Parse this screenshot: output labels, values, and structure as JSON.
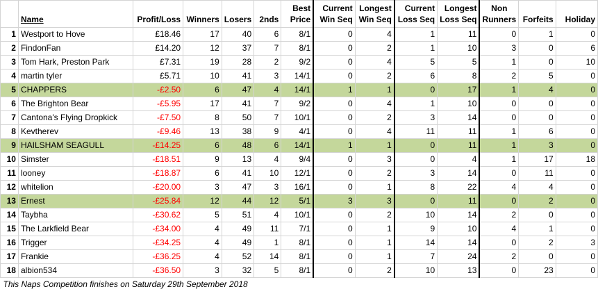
{
  "headers": {
    "name": "Name",
    "profit": "Profit/Loss",
    "winners": "Winners",
    "losers": "Losers",
    "seconds": "2nds",
    "best_price": [
      "Best",
      "Price"
    ],
    "cur_win": [
      "Current",
      "Win Seq"
    ],
    "long_win": [
      "Longest",
      "Win Seq"
    ],
    "cur_loss": [
      "Current",
      "Loss Seq"
    ],
    "long_loss": [
      "Longest",
      "Loss Seq"
    ],
    "non_runners": [
      "Non",
      "Runners"
    ],
    "forfeits": "Forfeits",
    "holiday": "Holiday"
  },
  "rows": [
    {
      "rank": "1",
      "name": "Westport to Hove",
      "profit": "£18.46",
      "winners": "17",
      "losers": "40",
      "seconds": "6",
      "best": "8/1",
      "cw": "0",
      "lw": "4",
      "cl": "1",
      "ll": "11",
      "nr": "0",
      "ff": "1",
      "hol": "0",
      "highlight": false,
      "negative": false
    },
    {
      "rank": "2",
      "name": "FindonFan",
      "profit": "£14.20",
      "winners": "12",
      "losers": "37",
      "seconds": "7",
      "best": "8/1",
      "cw": "0",
      "lw": "2",
      "cl": "1",
      "ll": "10",
      "nr": "3",
      "ff": "0",
      "hol": "6",
      "highlight": false,
      "negative": false
    },
    {
      "rank": "3",
      "name": "Tom Hark, Preston Park",
      "profit": "£7.31",
      "winners": "19",
      "losers": "28",
      "seconds": "2",
      "best": "9/2",
      "cw": "0",
      "lw": "4",
      "cl": "5",
      "ll": "5",
      "nr": "1",
      "ff": "0",
      "hol": "10",
      "highlight": false,
      "negative": false
    },
    {
      "rank": "4",
      "name": "martin tyler",
      "profit": "£5.71",
      "winners": "10",
      "losers": "41",
      "seconds": "3",
      "best": "14/1",
      "cw": "0",
      "lw": "2",
      "cl": "6",
      "ll": "8",
      "nr": "2",
      "ff": "5",
      "hol": "0",
      "highlight": false,
      "negative": false
    },
    {
      "rank": "5",
      "name": "CHAPPERS",
      "profit": "-£2.50",
      "winners": "6",
      "losers": "47",
      "seconds": "4",
      "best": "14/1",
      "cw": "1",
      "lw": "1",
      "cl": "0",
      "ll": "17",
      "nr": "1",
      "ff": "4",
      "hol": "0",
      "highlight": true,
      "negative": true
    },
    {
      "rank": "6",
      "name": "The Brighton Bear",
      "profit": "-£5.95",
      "winners": "17",
      "losers": "41",
      "seconds": "7",
      "best": "9/2",
      "cw": "0",
      "lw": "4",
      "cl": "1",
      "ll": "10",
      "nr": "0",
      "ff": "0",
      "hol": "0",
      "highlight": false,
      "negative": true
    },
    {
      "rank": "7",
      "name": "Cantona's Flying Dropkick",
      "profit": "-£7.50",
      "winners": "8",
      "losers": "50",
      "seconds": "7",
      "best": "10/1",
      "cw": "0",
      "lw": "2",
      "cl": "3",
      "ll": "14",
      "nr": "0",
      "ff": "0",
      "hol": "0",
      "highlight": false,
      "negative": true
    },
    {
      "rank": "8",
      "name": "Kevtherev",
      "profit": "-£9.46",
      "winners": "13",
      "losers": "38",
      "seconds": "9",
      "best": "4/1",
      "cw": "0",
      "lw": "4",
      "cl": "11",
      "ll": "11",
      "nr": "1",
      "ff": "6",
      "hol": "0",
      "highlight": false,
      "negative": true
    },
    {
      "rank": "9",
      "name": "HAILSHAM SEAGULL",
      "profit": "-£14.25",
      "winners": "6",
      "losers": "48",
      "seconds": "6",
      "best": "14/1",
      "cw": "1",
      "lw": "1",
      "cl": "0",
      "ll": "11",
      "nr": "1",
      "ff": "3",
      "hol": "0",
      "highlight": true,
      "negative": true
    },
    {
      "rank": "10",
      "name": "Simster",
      "profit": "-£18.51",
      "winners": "9",
      "losers": "13",
      "seconds": "4",
      "best": "9/4",
      "cw": "0",
      "lw": "3",
      "cl": "0",
      "ll": "4",
      "nr": "1",
      "ff": "17",
      "hol": "18",
      "highlight": false,
      "negative": true
    },
    {
      "rank": "11",
      "name": "looney",
      "profit": "-£18.87",
      "winners": "6",
      "losers": "41",
      "seconds": "10",
      "best": "12/1",
      "cw": "0",
      "lw": "2",
      "cl": "3",
      "ll": "14",
      "nr": "0",
      "ff": "11",
      "hol": "0",
      "highlight": false,
      "negative": true
    },
    {
      "rank": "12",
      "name": "whitelion",
      "profit": "-£20.00",
      "winners": "3",
      "losers": "47",
      "seconds": "3",
      "best": "16/1",
      "cw": "0",
      "lw": "1",
      "cl": "8",
      "ll": "22",
      "nr": "4",
      "ff": "4",
      "hol": "0",
      "highlight": false,
      "negative": true
    },
    {
      "rank": "13",
      "name": "Ernest",
      "profit": "-£25.84",
      "winners": "12",
      "losers": "44",
      "seconds": "12",
      "best": "5/1",
      "cw": "3",
      "lw": "3",
      "cl": "0",
      "ll": "11",
      "nr": "0",
      "ff": "2",
      "hol": "0",
      "highlight": true,
      "negative": true
    },
    {
      "rank": "14",
      "name": "Taybha",
      "profit": "-£30.62",
      "winners": "5",
      "losers": "51",
      "seconds": "4",
      "best": "10/1",
      "cw": "0",
      "lw": "2",
      "cl": "10",
      "ll": "14",
      "nr": "2",
      "ff": "0",
      "hol": "0",
      "highlight": false,
      "negative": true
    },
    {
      "rank": "15",
      "name": "The Larkfield Bear",
      "profit": "-£34.00",
      "winners": "4",
      "losers": "49",
      "seconds": "11",
      "best": "7/1",
      "cw": "0",
      "lw": "1",
      "cl": "9",
      "ll": "10",
      "nr": "4",
      "ff": "1",
      "hol": "0",
      "highlight": false,
      "negative": true
    },
    {
      "rank": "16",
      "name": "Trigger",
      "profit": "-£34.25",
      "winners": "4",
      "losers": "49",
      "seconds": "1",
      "best": "8/1",
      "cw": "0",
      "lw": "1",
      "cl": "14",
      "ll": "14",
      "nr": "0",
      "ff": "2",
      "hol": "3",
      "highlight": false,
      "negative": true
    },
    {
      "rank": "17",
      "name": "Frankie",
      "profit": "-£36.25",
      "winners": "4",
      "losers": "52",
      "seconds": "14",
      "best": "8/1",
      "cw": "0",
      "lw": "1",
      "cl": "7",
      "ll": "24",
      "nr": "2",
      "ff": "0",
      "hol": "0",
      "highlight": false,
      "negative": true
    },
    {
      "rank": "18",
      "name": "albion534",
      "profit": "-£36.50",
      "winners": "3",
      "losers": "32",
      "seconds": "5",
      "best": "8/1",
      "cw": "0",
      "lw": "2",
      "cl": "10",
      "ll": "13",
      "nr": "0",
      "ff": "23",
      "hol": "0",
      "highlight": false,
      "negative": true
    }
  ],
  "footer": "This Naps Competition finishes on Saturday 29th September 2018",
  "colors": {
    "highlight": "#c4d79b",
    "negative": "#ff0000"
  }
}
